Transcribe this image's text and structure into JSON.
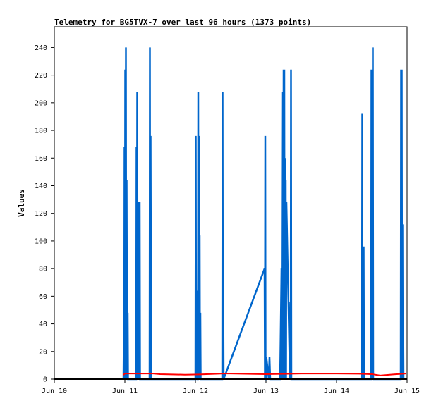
{
  "chart_data": {
    "type": "line",
    "title": "Telemetry for BG5TVX-7 over last 96 hours (1373 points)",
    "xlabel": "",
    "ylabel": "Values",
    "xlim": [
      "Jun 10",
      "Jun 15"
    ],
    "ylim": [
      0,
      255
    ],
    "x_unit": "days",
    "x_ticks": [
      "Jun 10",
      "Jun 11",
      "Jun 12",
      "Jun 13",
      "Jun 14",
      "Jun 15"
    ],
    "y_ticks": [
      0,
      20,
      40,
      60,
      80,
      100,
      120,
      140,
      160,
      180,
      200,
      220,
      240
    ],
    "grid": false,
    "legend": "none",
    "series": [
      {
        "color": "#0066cc",
        "x": [
          0.98,
          0.985,
          0.99,
          0.995,
          1.0,
          1.005,
          1.01,
          1.015,
          1.02,
          1.025,
          1.03,
          1.035,
          1.04,
          1.045,
          1.05,
          1.16,
          1.165,
          1.17,
          1.175,
          1.18,
          1.185,
          1.19,
          1.195,
          1.2,
          1.205,
          1.21,
          1.215,
          1.35,
          1.355,
          1.36,
          1.365,
          1.37,
          1.375,
          2.0,
          2.005,
          2.01,
          2.015,
          2.02,
          2.025,
          2.03,
          2.035,
          2.04,
          2.045,
          2.05,
          2.055,
          2.06,
          2.065,
          2.07,
          2.075,
          2.08,
          2.085,
          2.38,
          2.385,
          2.39,
          2.395,
          2.4,
          2.98,
          2.985,
          2.99,
          2.995,
          3.0,
          3.005,
          3.04,
          3.05,
          3.06,
          3.08,
          3.1,
          3.12,
          3.2,
          3.22,
          3.23,
          3.24,
          3.245,
          3.25,
          3.255,
          3.26,
          3.265,
          3.27,
          3.275,
          3.28,
          3.285,
          3.29,
          3.34,
          3.345,
          3.35,
          3.355,
          3.36,
          3.365,
          4.36,
          4.365,
          4.37,
          4.375,
          4.38,
          4.385,
          4.39,
          4.49,
          4.495,
          4.5,
          4.505,
          4.51,
          4.515,
          4.52,
          4.525,
          4.53,
          4.535,
          4.91,
          4.915,
          4.92,
          4.925,
          4.93,
          4.935,
          4.94,
          4.945,
          4.95
        ],
        "y": [
          0,
          32,
          0,
          168,
          0,
          224,
          56,
          240,
          0,
          144,
          48,
          0,
          48,
          0,
          0,
          0,
          168,
          0,
          208,
          64,
          0,
          112,
          0,
          128,
          0,
          128,
          0,
          0,
          240,
          0,
          176,
          64,
          0,
          0,
          176,
          0,
          48,
          0,
          64,
          0,
          0,
          208,
          0,
          176,
          0,
          104,
          0,
          48,
          0,
          0,
          0,
          0,
          208,
          0,
          64,
          0,
          80,
          0,
          176,
          0,
          0,
          16,
          0,
          16,
          0,
          0,
          0,
          0,
          0,
          80,
          0,
          208,
          0,
          224,
          0,
          224,
          0,
          160,
          0,
          144,
          0,
          128,
          0,
          56,
          0,
          224,
          0,
          0,
          0,
          192,
          0,
          96,
          0,
          96,
          0,
          0,
          224,
          0,
          208,
          0,
          240,
          0,
          0,
          0,
          0,
          0,
          224,
          0,
          224,
          0,
          112,
          0,
          48,
          0
        ]
      },
      {
        "color": "#ff0000",
        "x": [
          0.98,
          1.0,
          1.4,
          1.5,
          1.85,
          2.05,
          2.4,
          2.5,
          3.0,
          3.3,
          3.5,
          4.0,
          4.3,
          4.5,
          4.62,
          4.8,
          4.98
        ],
        "y": [
          3,
          4,
          4,
          3.6,
          3.2,
          3.4,
          4,
          4,
          3.6,
          3.8,
          4,
          4,
          3.9,
          3.6,
          2.6,
          3.4,
          4
        ]
      },
      {
        "color": "#000000",
        "x": [
          0,
          5
        ],
        "y": [
          0,
          0
        ]
      }
    ]
  }
}
